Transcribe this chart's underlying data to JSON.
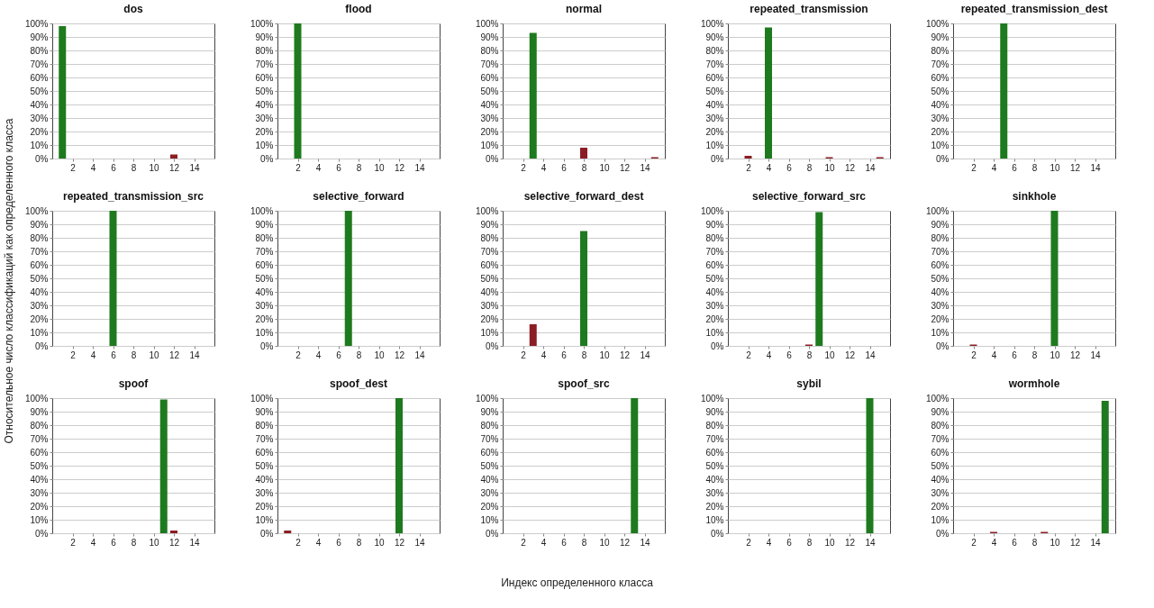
{
  "chart_data": [
    {
      "type": "bar",
      "title": "dos",
      "x": [
        1,
        2,
        3,
        4,
        5,
        6,
        7,
        8,
        9,
        10,
        11,
        12,
        13,
        14,
        15
      ],
      "values": [
        98,
        0,
        0,
        0,
        0,
        0,
        0,
        0,
        0,
        0,
        0,
        3,
        0,
        0,
        0
      ],
      "colors": [
        "#1e7a1e",
        "#8b1e24",
        "#8b1e24",
        "#8b1e24",
        "#8b1e24",
        "#8b1e24",
        "#8b1e24",
        "#8b1e24",
        "#8b1e24",
        "#8b1e24",
        "#8b1e24",
        "#8b1e24",
        "#8b1e24",
        "#8b1e24",
        "#8b1e24"
      ],
      "xlim": [
        0,
        16
      ],
      "xticks": [
        2,
        4,
        6,
        8,
        10,
        12,
        14
      ],
      "ylim": [
        0,
        100
      ],
      "yticks": [
        {
          "value": 0,
          "label": "0%"
        },
        {
          "value": 10,
          "label": "10%"
        },
        {
          "value": 20,
          "label": "20%"
        },
        {
          "value": 30,
          "label": "30%"
        },
        {
          "value": 40,
          "label": "40%"
        },
        {
          "value": 50,
          "label": "50%"
        },
        {
          "value": 60,
          "label": "60%"
        },
        {
          "value": 70,
          "label": "70%"
        },
        {
          "value": 80,
          "label": "80%"
        },
        {
          "value": 90,
          "label": "90%"
        },
        {
          "value": 100,
          "label": "100%"
        }
      ],
      "grid": "y"
    },
    {
      "type": "bar",
      "title": "flood",
      "x": [
        1,
        2,
        3,
        4,
        5,
        6,
        7,
        8,
        9,
        10,
        11,
        12,
        13,
        14,
        15
      ],
      "values": [
        0,
        100,
        0,
        0,
        0,
        0,
        0,
        0,
        0,
        0,
        0,
        0,
        0,
        0,
        0
      ],
      "colors": [
        "#8b1e24",
        "#1e7a1e",
        "#8b1e24",
        "#8b1e24",
        "#8b1e24",
        "#8b1e24",
        "#8b1e24",
        "#8b1e24",
        "#8b1e24",
        "#8b1e24",
        "#8b1e24",
        "#8b1e24",
        "#8b1e24",
        "#8b1e24",
        "#8b1e24"
      ],
      "xlim": [
        0,
        16
      ],
      "xticks": [
        2,
        4,
        6,
        8,
        10,
        12,
        14
      ],
      "ylim": [
        0,
        100
      ],
      "yticks": [
        {
          "value": 0,
          "label": "0%"
        },
        {
          "value": 10,
          "label": "10%"
        },
        {
          "value": 20,
          "label": "20%"
        },
        {
          "value": 30,
          "label": "30%"
        },
        {
          "value": 40,
          "label": "40%"
        },
        {
          "value": 50,
          "label": "50%"
        },
        {
          "value": 60,
          "label": "60%"
        },
        {
          "value": 70,
          "label": "70%"
        },
        {
          "value": 80,
          "label": "80%"
        },
        {
          "value": 90,
          "label": "90%"
        },
        {
          "value": 100,
          "label": "100%"
        }
      ],
      "grid": "y"
    },
    {
      "type": "bar",
      "title": "normal",
      "x": [
        1,
        2,
        3,
        4,
        5,
        6,
        7,
        8,
        9,
        10,
        11,
        12,
        13,
        14,
        15
      ],
      "values": [
        0,
        0,
        93,
        0,
        0,
        0,
        0,
        8,
        0,
        0,
        0,
        0,
        0,
        0,
        1
      ],
      "colors": [
        "#8b1e24",
        "#8b1e24",
        "#1e7a1e",
        "#8b1e24",
        "#8b1e24",
        "#8b1e24",
        "#8b1e24",
        "#8b1e24",
        "#8b1e24",
        "#8b1e24",
        "#8b1e24",
        "#8b1e24",
        "#8b1e24",
        "#8b1e24",
        "#8b1e24"
      ],
      "xlim": [
        0,
        16
      ],
      "xticks": [
        2,
        4,
        6,
        8,
        10,
        12,
        14
      ],
      "ylim": [
        0,
        100
      ],
      "yticks": [
        {
          "value": 0,
          "label": "0%"
        },
        {
          "value": 10,
          "label": "10%"
        },
        {
          "value": 20,
          "label": "20%"
        },
        {
          "value": 30,
          "label": "30%"
        },
        {
          "value": 40,
          "label": "40%"
        },
        {
          "value": 50,
          "label": "50%"
        },
        {
          "value": 60,
          "label": "60%"
        },
        {
          "value": 70,
          "label": "70%"
        },
        {
          "value": 80,
          "label": "80%"
        },
        {
          "value": 90,
          "label": "90%"
        },
        {
          "value": 100,
          "label": "100%"
        }
      ],
      "grid": "y"
    },
    {
      "type": "bar",
      "title": "repeated_transmission",
      "x": [
        1,
        2,
        3,
        4,
        5,
        6,
        7,
        8,
        9,
        10,
        11,
        12,
        13,
        14,
        15
      ],
      "values": [
        0,
        2,
        0,
        97,
        0,
        0,
        0,
        0,
        0,
        1,
        0,
        0,
        0,
        0,
        1
      ],
      "colors": [
        "#8b1e24",
        "#8b1e24",
        "#8b1e24",
        "#1e7a1e",
        "#8b1e24",
        "#8b1e24",
        "#8b1e24",
        "#8b1e24",
        "#8b1e24",
        "#8b1e24",
        "#8b1e24",
        "#8b1e24",
        "#8b1e24",
        "#8b1e24",
        "#8b1e24"
      ],
      "xlim": [
        0,
        16
      ],
      "xticks": [
        2,
        4,
        6,
        8,
        10,
        12,
        14
      ],
      "ylim": [
        0,
        100
      ],
      "yticks": [
        {
          "value": 0,
          "label": "0%"
        },
        {
          "value": 10,
          "label": "10%"
        },
        {
          "value": 20,
          "label": "20%"
        },
        {
          "value": 30,
          "label": "30%"
        },
        {
          "value": 40,
          "label": "40%"
        },
        {
          "value": 50,
          "label": "50%"
        },
        {
          "value": 60,
          "label": "60%"
        },
        {
          "value": 70,
          "label": "70%"
        },
        {
          "value": 80,
          "label": "80%"
        },
        {
          "value": 90,
          "label": "90%"
        },
        {
          "value": 100,
          "label": "100%"
        }
      ],
      "grid": "y"
    },
    {
      "type": "bar",
      "title": "repeated_transmission_dest",
      "x": [
        1,
        2,
        3,
        4,
        5,
        6,
        7,
        8,
        9,
        10,
        11,
        12,
        13,
        14,
        15
      ],
      "values": [
        0,
        0,
        0,
        0,
        100,
        0,
        0,
        0,
        0,
        0,
        0,
        0,
        0,
        0,
        0
      ],
      "colors": [
        "#8b1e24",
        "#8b1e24",
        "#8b1e24",
        "#8b1e24",
        "#1e7a1e",
        "#8b1e24",
        "#8b1e24",
        "#8b1e24",
        "#8b1e24",
        "#8b1e24",
        "#8b1e24",
        "#8b1e24",
        "#8b1e24",
        "#8b1e24",
        "#8b1e24"
      ],
      "xlim": [
        0,
        16
      ],
      "xticks": [
        2,
        4,
        6,
        8,
        10,
        12,
        14
      ],
      "ylim": [
        0,
        100
      ],
      "yticks": [
        {
          "value": 0,
          "label": "0%"
        },
        {
          "value": 10,
          "label": "10%"
        },
        {
          "value": 20,
          "label": "20%"
        },
        {
          "value": 30,
          "label": "30%"
        },
        {
          "value": 40,
          "label": "40%"
        },
        {
          "value": 50,
          "label": "50%"
        },
        {
          "value": 60,
          "label": "60%"
        },
        {
          "value": 70,
          "label": "70%"
        },
        {
          "value": 80,
          "label": "80%"
        },
        {
          "value": 90,
          "label": "90%"
        },
        {
          "value": 100,
          "label": "100%"
        }
      ],
      "grid": "y"
    },
    {
      "type": "bar",
      "title": "repeated_transmission_src",
      "ylabel": "Относительное число классификаций как определенного класса",
      "x": [
        1,
        2,
        3,
        4,
        5,
        6,
        7,
        8,
        9,
        10,
        11,
        12,
        13,
        14,
        15
      ],
      "values": [
        0,
        0,
        0,
        0,
        0,
        100,
        0,
        0,
        0,
        0,
        0,
        0,
        0,
        0,
        0
      ],
      "colors": [
        "#8b1e24",
        "#8b1e24",
        "#8b1e24",
        "#8b1e24",
        "#8b1e24",
        "#1e7a1e",
        "#8b1e24",
        "#8b1e24",
        "#8b1e24",
        "#8b1e24",
        "#8b1e24",
        "#8b1e24",
        "#8b1e24",
        "#8b1e24",
        "#8b1e24"
      ],
      "xlim": [
        0,
        16
      ],
      "xticks": [
        2,
        4,
        6,
        8,
        10,
        12,
        14
      ],
      "ylim": [
        0,
        100
      ],
      "yticks": [
        {
          "value": 0,
          "label": "0%"
        },
        {
          "value": 10,
          "label": "10%"
        },
        {
          "value": 20,
          "label": "20%"
        },
        {
          "value": 30,
          "label": "30%"
        },
        {
          "value": 40,
          "label": "40%"
        },
        {
          "value": 50,
          "label": "50%"
        },
        {
          "value": 60,
          "label": "60%"
        },
        {
          "value": 70,
          "label": "70%"
        },
        {
          "value": 80,
          "label": "80%"
        },
        {
          "value": 90,
          "label": "90%"
        },
        {
          "value": 100,
          "label": "100%"
        }
      ],
      "grid": "y"
    },
    {
      "type": "bar",
      "title": "selective_forward",
      "x": [
        1,
        2,
        3,
        4,
        5,
        6,
        7,
        8,
        9,
        10,
        11,
        12,
        13,
        14,
        15
      ],
      "values": [
        0,
        0,
        0,
        0,
        0,
        0,
        100,
        0,
        0,
        0,
        0,
        0,
        0,
        0,
        0
      ],
      "colors": [
        "#8b1e24",
        "#8b1e24",
        "#8b1e24",
        "#8b1e24",
        "#8b1e24",
        "#8b1e24",
        "#1e7a1e",
        "#8b1e24",
        "#8b1e24",
        "#8b1e24",
        "#8b1e24",
        "#8b1e24",
        "#8b1e24",
        "#8b1e24",
        "#8b1e24"
      ],
      "xlim": [
        0,
        16
      ],
      "xticks": [
        2,
        4,
        6,
        8,
        10,
        12,
        14
      ],
      "ylim": [
        0,
        100
      ],
      "yticks": [
        {
          "value": 0,
          "label": "0%"
        },
        {
          "value": 10,
          "label": "10%"
        },
        {
          "value": 20,
          "label": "20%"
        },
        {
          "value": 30,
          "label": "30%"
        },
        {
          "value": 40,
          "label": "40%"
        },
        {
          "value": 50,
          "label": "50%"
        },
        {
          "value": 60,
          "label": "60%"
        },
        {
          "value": 70,
          "label": "70%"
        },
        {
          "value": 80,
          "label": "80%"
        },
        {
          "value": 90,
          "label": "90%"
        },
        {
          "value": 100,
          "label": "100%"
        }
      ],
      "grid": "y"
    },
    {
      "type": "bar",
      "title": "selective_forward_dest",
      "x": [
        1,
        2,
        3,
        4,
        5,
        6,
        7,
        8,
        9,
        10,
        11,
        12,
        13,
        14,
        15
      ],
      "values": [
        0,
        0,
        16,
        0,
        0,
        0,
        0,
        85,
        0,
        0,
        0,
        0,
        0,
        0,
        0
      ],
      "colors": [
        "#8b1e24",
        "#8b1e24",
        "#8b1e24",
        "#8b1e24",
        "#8b1e24",
        "#8b1e24",
        "#8b1e24",
        "#1e7a1e",
        "#8b1e24",
        "#8b1e24",
        "#8b1e24",
        "#8b1e24",
        "#8b1e24",
        "#8b1e24",
        "#8b1e24"
      ],
      "xlim": [
        0,
        16
      ],
      "xticks": [
        2,
        4,
        6,
        8,
        10,
        12,
        14
      ],
      "ylim": [
        0,
        100
      ],
      "yticks": [
        {
          "value": 0,
          "label": "0%"
        },
        {
          "value": 10,
          "label": "10%"
        },
        {
          "value": 20,
          "label": "20%"
        },
        {
          "value": 30,
          "label": "30%"
        },
        {
          "value": 40,
          "label": "40%"
        },
        {
          "value": 50,
          "label": "50%"
        },
        {
          "value": 60,
          "label": "60%"
        },
        {
          "value": 70,
          "label": "70%"
        },
        {
          "value": 80,
          "label": "80%"
        },
        {
          "value": 90,
          "label": "90%"
        },
        {
          "value": 100,
          "label": "100%"
        }
      ],
      "grid": "y"
    },
    {
      "type": "bar",
      "title": "selective_forward_src",
      "x": [
        1,
        2,
        3,
        4,
        5,
        6,
        7,
        8,
        9,
        10,
        11,
        12,
        13,
        14,
        15
      ],
      "values": [
        0,
        0,
        0,
        0,
        0,
        0,
        0,
        1,
        99,
        0,
        0,
        0,
        0,
        0,
        0
      ],
      "colors": [
        "#8b1e24",
        "#8b1e24",
        "#8b1e24",
        "#8b1e24",
        "#8b1e24",
        "#8b1e24",
        "#8b1e24",
        "#8b1e24",
        "#1e7a1e",
        "#8b1e24",
        "#8b1e24",
        "#8b1e24",
        "#8b1e24",
        "#8b1e24",
        "#8b1e24"
      ],
      "xlim": [
        0,
        16
      ],
      "xticks": [
        2,
        4,
        6,
        8,
        10,
        12,
        14
      ],
      "ylim": [
        0,
        100
      ],
      "yticks": [
        {
          "value": 0,
          "label": "0%"
        },
        {
          "value": 10,
          "label": "10%"
        },
        {
          "value": 20,
          "label": "20%"
        },
        {
          "value": 30,
          "label": "30%"
        },
        {
          "value": 40,
          "label": "40%"
        },
        {
          "value": 50,
          "label": "50%"
        },
        {
          "value": 60,
          "label": "60%"
        },
        {
          "value": 70,
          "label": "70%"
        },
        {
          "value": 80,
          "label": "80%"
        },
        {
          "value": 90,
          "label": "90%"
        },
        {
          "value": 100,
          "label": "100%"
        }
      ],
      "grid": "y"
    },
    {
      "type": "bar",
      "title": "sinkhole",
      "x": [
        1,
        2,
        3,
        4,
        5,
        6,
        7,
        8,
        9,
        10,
        11,
        12,
        13,
        14,
        15
      ],
      "values": [
        0,
        1,
        0,
        0,
        0,
        0,
        0,
        0,
        0,
        100,
        0,
        0,
        0,
        0,
        0
      ],
      "colors": [
        "#8b1e24",
        "#8b1e24",
        "#8b1e24",
        "#8b1e24",
        "#8b1e24",
        "#8b1e24",
        "#8b1e24",
        "#8b1e24",
        "#8b1e24",
        "#1e7a1e",
        "#8b1e24",
        "#8b1e24",
        "#8b1e24",
        "#8b1e24",
        "#8b1e24"
      ],
      "xlim": [
        0,
        16
      ],
      "xticks": [
        2,
        4,
        6,
        8,
        10,
        12,
        14
      ],
      "ylim": [
        0,
        100
      ],
      "yticks": [
        {
          "value": 0,
          "label": "0%"
        },
        {
          "value": 10,
          "label": "10%"
        },
        {
          "value": 20,
          "label": "20%"
        },
        {
          "value": 30,
          "label": "30%"
        },
        {
          "value": 40,
          "label": "40%"
        },
        {
          "value": 50,
          "label": "50%"
        },
        {
          "value": 60,
          "label": "60%"
        },
        {
          "value": 70,
          "label": "70%"
        },
        {
          "value": 80,
          "label": "80%"
        },
        {
          "value": 90,
          "label": "90%"
        },
        {
          "value": 100,
          "label": "100%"
        }
      ],
      "grid": "y"
    },
    {
      "type": "bar",
      "title": "spoof",
      "x": [
        1,
        2,
        3,
        4,
        5,
        6,
        7,
        8,
        9,
        10,
        11,
        12,
        13,
        14,
        15
      ],
      "values": [
        0,
        0,
        0,
        0,
        0,
        0,
        0,
        0,
        0,
        0,
        99,
        2,
        0,
        0,
        0
      ],
      "colors": [
        "#8b1e24",
        "#8b1e24",
        "#8b1e24",
        "#8b1e24",
        "#8b1e24",
        "#8b1e24",
        "#8b1e24",
        "#8b1e24",
        "#8b1e24",
        "#8b1e24",
        "#1e7a1e",
        "#8b1e24",
        "#8b1e24",
        "#8b1e24",
        "#8b1e24"
      ],
      "xlim": [
        0,
        16
      ],
      "xticks": [
        2,
        4,
        6,
        8,
        10,
        12,
        14
      ],
      "ylim": [
        0,
        100
      ],
      "yticks": [
        {
          "value": 0,
          "label": "0%"
        },
        {
          "value": 10,
          "label": "10%"
        },
        {
          "value": 20,
          "label": "20%"
        },
        {
          "value": 30,
          "label": "30%"
        },
        {
          "value": 40,
          "label": "40%"
        },
        {
          "value": 50,
          "label": "50%"
        },
        {
          "value": 60,
          "label": "60%"
        },
        {
          "value": 70,
          "label": "70%"
        },
        {
          "value": 80,
          "label": "80%"
        },
        {
          "value": 90,
          "label": "90%"
        },
        {
          "value": 100,
          "label": "100%"
        }
      ],
      "grid": "y"
    },
    {
      "type": "bar",
      "title": "spoof_dest",
      "x": [
        1,
        2,
        3,
        4,
        5,
        6,
        7,
        8,
        9,
        10,
        11,
        12,
        13,
        14,
        15
      ],
      "values": [
        2,
        0,
        0,
        0,
        0,
        0,
        0,
        0,
        0,
        0,
        0,
        100,
        0,
        0,
        0
      ],
      "colors": [
        "#8b1e24",
        "#8b1e24",
        "#8b1e24",
        "#8b1e24",
        "#8b1e24",
        "#8b1e24",
        "#8b1e24",
        "#8b1e24",
        "#8b1e24",
        "#8b1e24",
        "#8b1e24",
        "#1e7a1e",
        "#8b1e24",
        "#8b1e24",
        "#8b1e24"
      ],
      "xlim": [
        0,
        16
      ],
      "xticks": [
        2,
        4,
        6,
        8,
        10,
        12,
        14
      ],
      "ylim": [
        0,
        100
      ],
      "yticks": [
        {
          "value": 0,
          "label": "0%"
        },
        {
          "value": 10,
          "label": "10%"
        },
        {
          "value": 20,
          "label": "20%"
        },
        {
          "value": 30,
          "label": "30%"
        },
        {
          "value": 40,
          "label": "40%"
        },
        {
          "value": 50,
          "label": "50%"
        },
        {
          "value": 60,
          "label": "60%"
        },
        {
          "value": 70,
          "label": "70%"
        },
        {
          "value": 80,
          "label": "80%"
        },
        {
          "value": 90,
          "label": "90%"
        },
        {
          "value": 100,
          "label": "100%"
        }
      ],
      "grid": "y"
    },
    {
      "type": "bar",
      "title": "spoof_src",
      "xlabel": "Индекс определенного класса",
      "x": [
        1,
        2,
        3,
        4,
        5,
        6,
        7,
        8,
        9,
        10,
        11,
        12,
        13,
        14,
        15
      ],
      "values": [
        0,
        0,
        0,
        0,
        0,
        0,
        0,
        0,
        0,
        0,
        0,
        0,
        100,
        0,
        0
      ],
      "colors": [
        "#8b1e24",
        "#8b1e24",
        "#8b1e24",
        "#8b1e24",
        "#8b1e24",
        "#8b1e24",
        "#8b1e24",
        "#8b1e24",
        "#8b1e24",
        "#8b1e24",
        "#8b1e24",
        "#8b1e24",
        "#1e7a1e",
        "#8b1e24",
        "#8b1e24"
      ],
      "xlim": [
        0,
        16
      ],
      "xticks": [
        2,
        4,
        6,
        8,
        10,
        12,
        14
      ],
      "ylim": [
        0,
        100
      ],
      "yticks": [
        {
          "value": 0,
          "label": "0%"
        },
        {
          "value": 10,
          "label": "10%"
        },
        {
          "value": 20,
          "label": "20%"
        },
        {
          "value": 30,
          "label": "30%"
        },
        {
          "value": 40,
          "label": "40%"
        },
        {
          "value": 50,
          "label": "50%"
        },
        {
          "value": 60,
          "label": "60%"
        },
        {
          "value": 70,
          "label": "70%"
        },
        {
          "value": 80,
          "label": "80%"
        },
        {
          "value": 90,
          "label": "90%"
        },
        {
          "value": 100,
          "label": "100%"
        }
      ],
      "grid": "y"
    },
    {
      "type": "bar",
      "title": "sybil",
      "x": [
        1,
        2,
        3,
        4,
        5,
        6,
        7,
        8,
        9,
        10,
        11,
        12,
        13,
        14,
        15
      ],
      "values": [
        0,
        0,
        0,
        0,
        0,
        0,
        0,
        0,
        0,
        0,
        0,
        0,
        0,
        100,
        0
      ],
      "colors": [
        "#8b1e24",
        "#8b1e24",
        "#8b1e24",
        "#8b1e24",
        "#8b1e24",
        "#8b1e24",
        "#8b1e24",
        "#8b1e24",
        "#8b1e24",
        "#8b1e24",
        "#8b1e24",
        "#8b1e24",
        "#8b1e24",
        "#1e7a1e",
        "#8b1e24"
      ],
      "xlim": [
        0,
        16
      ],
      "xticks": [
        2,
        4,
        6,
        8,
        10,
        12,
        14
      ],
      "ylim": [
        0,
        100
      ],
      "yticks": [
        {
          "value": 0,
          "label": "0%"
        },
        {
          "value": 10,
          "label": "10%"
        },
        {
          "value": 20,
          "label": "20%"
        },
        {
          "value": 30,
          "label": "30%"
        },
        {
          "value": 40,
          "label": "40%"
        },
        {
          "value": 50,
          "label": "50%"
        },
        {
          "value": 60,
          "label": "60%"
        },
        {
          "value": 70,
          "label": "70%"
        },
        {
          "value": 80,
          "label": "80%"
        },
        {
          "value": 90,
          "label": "90%"
        },
        {
          "value": 100,
          "label": "100%"
        }
      ],
      "grid": "y"
    },
    {
      "type": "bar",
      "title": "wormhole",
      "x": [
        1,
        2,
        3,
        4,
        5,
        6,
        7,
        8,
        9,
        10,
        11,
        12,
        13,
        14,
        15
      ],
      "values": [
        0,
        0,
        0,
        1,
        0,
        0,
        0,
        0,
        1,
        0,
        0,
        0,
        0,
        0,
        98
      ],
      "colors": [
        "#8b1e24",
        "#8b1e24",
        "#8b1e24",
        "#8b1e24",
        "#8b1e24",
        "#8b1e24",
        "#8b1e24",
        "#8b1e24",
        "#8b1e24",
        "#8b1e24",
        "#8b1e24",
        "#8b1e24",
        "#8b1e24",
        "#8b1e24",
        "#1e7a1e"
      ],
      "xlim": [
        0,
        16
      ],
      "xticks": [
        2,
        4,
        6,
        8,
        10,
        12,
        14
      ],
      "ylim": [
        0,
        100
      ],
      "yticks": [
        {
          "value": 0,
          "label": "0%"
        },
        {
          "value": 10,
          "label": "10%"
        },
        {
          "value": 20,
          "label": "20%"
        },
        {
          "value": 30,
          "label": "30%"
        },
        {
          "value": 40,
          "label": "40%"
        },
        {
          "value": 50,
          "label": "50%"
        },
        {
          "value": 60,
          "label": "60%"
        },
        {
          "value": 70,
          "label": "70%"
        },
        {
          "value": 80,
          "label": "80%"
        },
        {
          "value": 90,
          "label": "90%"
        },
        {
          "value": 100,
          "label": "100%"
        }
      ],
      "grid": "y"
    }
  ]
}
